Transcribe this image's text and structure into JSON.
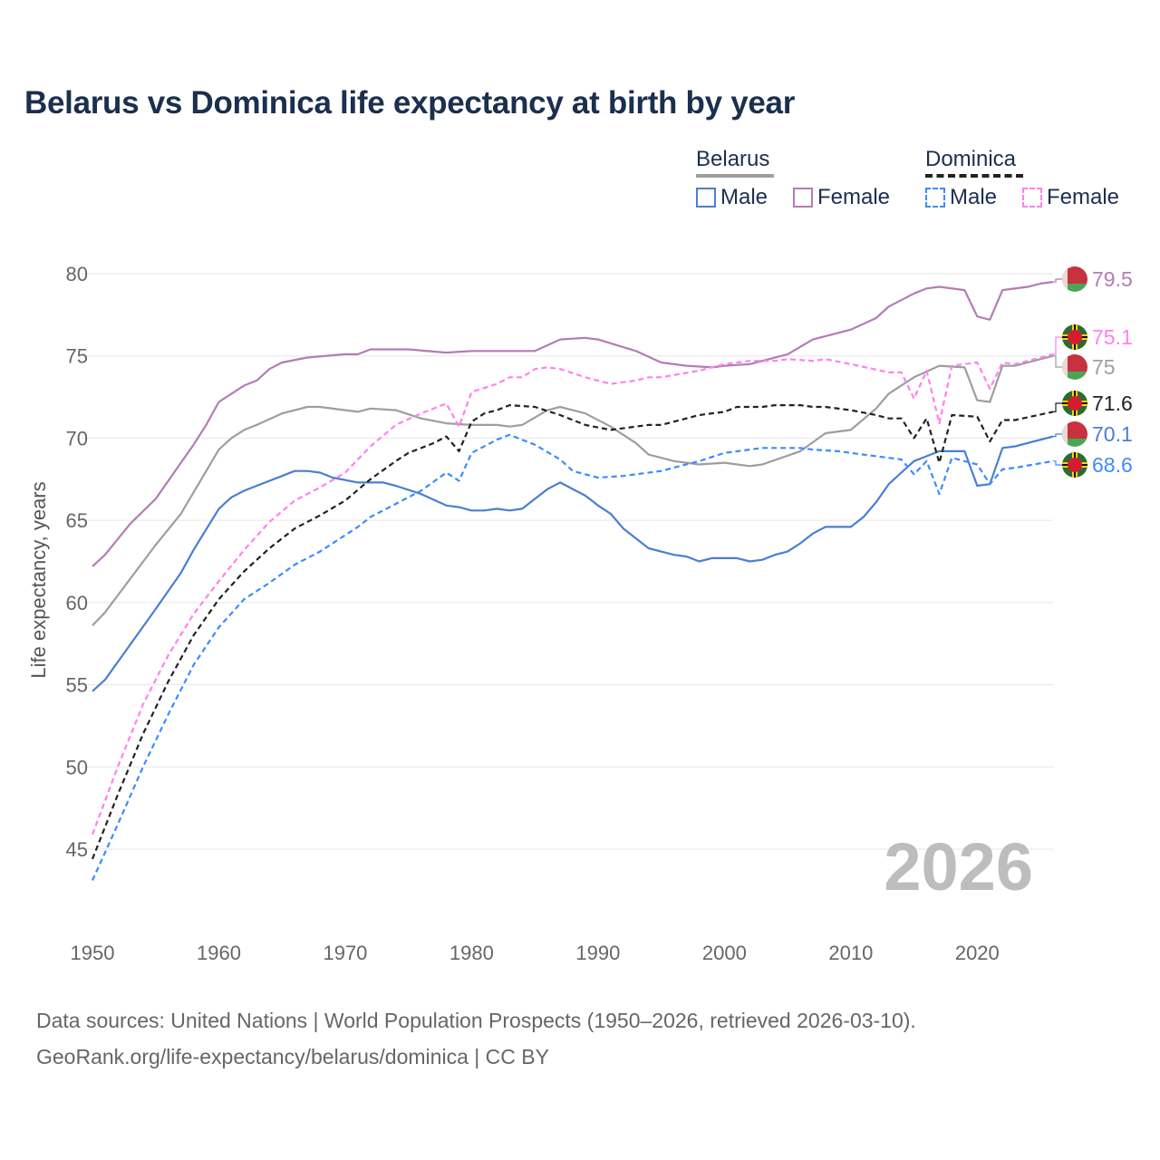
{
  "title": "Belarus vs Dominica life expectancy at birth by year",
  "legend": {
    "groups": [
      {
        "name": "Belarus",
        "items": [
          "Male",
          "Female"
        ]
      },
      {
        "name": "Dominica",
        "items": [
          "Male",
          "Female"
        ]
      }
    ]
  },
  "source": {
    "line1": "Data sources: United Nations | World Population Prospects (1950–2026, retrieved 2026-03-10).",
    "line2": "GeoRank.org/life-expectancy/belarus/dominica | CC BY"
  },
  "chart_data": {
    "type": "line",
    "title": "Belarus vs Dominica life expectancy at birth by year",
    "xlabel": "",
    "ylabel": "Life expectancy, years",
    "xlim": [
      1950,
      2026
    ],
    "ylim": [
      42,
      82
    ],
    "xticks": [
      1950,
      1960,
      1970,
      1980,
      1990,
      2000,
      2010,
      2020
    ],
    "yticks": [
      45,
      50,
      55,
      60,
      65,
      70,
      75,
      80
    ],
    "watermark": "2026",
    "grid": true,
    "legend_position": "top-right",
    "series": [
      {
        "name": "Belarus Female",
        "country": "Belarus",
        "color": "#b57bb5",
        "dashed": false,
        "end_label": "79.5",
        "flag": "belarus",
        "x": [
          1950,
          1951,
          1953,
          1955,
          1957,
          1958,
          1959,
          1960,
          1962,
          1963,
          1964,
          1965,
          1967,
          1970,
          1971,
          1972,
          1975,
          1978,
          1980,
          1985,
          1987,
          1989,
          1990,
          1993,
          1995,
          1997,
          1999,
          2000,
          2002,
          2005,
          2007,
          2009,
          2010,
          2012,
          2013,
          2015,
          2016,
          2017,
          2019,
          2020,
          2021,
          2022,
          2024,
          2025,
          2026
        ],
        "y": [
          62.2,
          62.9,
          64.8,
          66.3,
          68.5,
          69.6,
          70.8,
          72.2,
          73.2,
          73.5,
          74.2,
          74.6,
          74.9,
          75.1,
          75.1,
          75.4,
          75.4,
          75.2,
          75.3,
          75.3,
          76.0,
          76.1,
          76.0,
          75.3,
          74.6,
          74.4,
          74.3,
          74.4,
          74.5,
          75.1,
          76.0,
          76.4,
          76.6,
          77.3,
          78.0,
          78.8,
          79.1,
          79.2,
          79.0,
          77.4,
          77.2,
          79.0,
          79.2,
          79.4,
          79.5
        ]
      },
      {
        "name": "Belarus",
        "country": "Belarus",
        "color": "#9e9e9e",
        "dashed": false,
        "end_label": "75",
        "flag": "belarus",
        "x": [
          1950,
          1951,
          1955,
          1957,
          1958,
          1960,
          1961,
          1962,
          1963,
          1965,
          1967,
          1968,
          1970,
          1971,
          1972,
          1974,
          1976,
          1978,
          1980,
          1982,
          1983,
          1984,
          1986,
          1987,
          1989,
          1991,
          1993,
          1994,
          1996,
          1998,
          2000,
          2002,
          2003,
          2006,
          2008,
          2010,
          2012,
          2013,
          2015,
          2017,
          2019,
          2020,
          2021,
          2022,
          2023,
          2026
        ],
        "y": [
          58.6,
          59.4,
          63.5,
          65.4,
          66.7,
          69.3,
          70.0,
          70.5,
          70.8,
          71.5,
          71.9,
          71.9,
          71.7,
          71.6,
          71.8,
          71.7,
          71.2,
          70.9,
          70.8,
          70.8,
          70.7,
          70.8,
          71.7,
          71.9,
          71.5,
          70.7,
          69.7,
          69.0,
          68.6,
          68.4,
          68.5,
          68.3,
          68.4,
          69.2,
          70.3,
          70.5,
          71.8,
          72.7,
          73.7,
          74.4,
          74.3,
          72.3,
          72.2,
          74.4,
          74.4,
          75.0
        ]
      },
      {
        "name": "Belarus Male",
        "country": "Belarus",
        "color": "#4a7fd0",
        "dashed": false,
        "end_label": "70.1",
        "flag": "belarus",
        "x": [
          1950,
          1951,
          1955,
          1957,
          1958,
          1960,
          1961,
          1962,
          1963,
          1965,
          1966,
          1967,
          1968,
          1969,
          1971,
          1973,
          1974,
          1976,
          1978,
          1979,
          1980,
          1981,
          1982,
          1983,
          1984,
          1986,
          1987,
          1989,
          1990,
          1991,
          1992,
          1994,
          1996,
          1997,
          1998,
          1999,
          2001,
          2002,
          2003,
          2004,
          2005,
          2006,
          2007,
          2008,
          2010,
          2011,
          2012,
          2013,
          2014,
          2015,
          2016,
          2017,
          2019,
          2020,
          2021,
          2022,
          2023,
          2026
        ],
        "y": [
          54.6,
          55.3,
          59.6,
          61.8,
          63.2,
          65.7,
          66.4,
          66.8,
          67.1,
          67.7,
          68.0,
          68.0,
          67.9,
          67.6,
          67.3,
          67.3,
          67.1,
          66.6,
          65.9,
          65.8,
          65.6,
          65.6,
          65.7,
          65.6,
          65.7,
          66.9,
          67.3,
          66.5,
          65.9,
          65.4,
          64.5,
          63.3,
          62.9,
          62.8,
          62.5,
          62.7,
          62.7,
          62.5,
          62.6,
          62.9,
          63.1,
          63.6,
          64.2,
          64.6,
          64.6,
          65.2,
          66.1,
          67.2,
          67.9,
          68.6,
          68.9,
          69.2,
          69.2,
          67.1,
          67.2,
          69.4,
          69.5,
          70.1
        ]
      },
      {
        "name": "Dominica Female",
        "country": "Dominica",
        "color": "#ff80f0",
        "dashed": true,
        "end_label": "75.1",
        "flag": "dominica",
        "x": [
          1950,
          1952,
          1954,
          1956,
          1958,
          1960,
          1962,
          1964,
          1966,
          1968,
          1970,
          1972,
          1974,
          1976,
          1978,
          1979,
          1980,
          1982,
          1983,
          1984,
          1985,
          1986,
          1987,
          1989,
          1991,
          1993,
          1994,
          1995,
          1998,
          2000,
          2002,
          2004,
          2005,
          2007,
          2008,
          2010,
          2013,
          2014,
          2015,
          2016,
          2017,
          2018,
          2020,
          2021,
          2022,
          2023,
          2026
        ],
        "y": [
          45.9,
          50.0,
          53.8,
          56.8,
          59.3,
          61.3,
          63.2,
          64.9,
          66.2,
          67.0,
          67.9,
          69.5,
          70.8,
          71.5,
          72.1,
          70.7,
          72.8,
          73.3,
          73.7,
          73.7,
          74.2,
          74.3,
          74.2,
          73.7,
          73.3,
          73.5,
          73.7,
          73.7,
          74.1,
          74.5,
          74.7,
          74.7,
          74.8,
          74.7,
          74.8,
          74.5,
          74.0,
          74.0,
          72.4,
          74.1,
          70.9,
          74.4,
          74.6,
          73.0,
          74.6,
          74.5,
          75.1
        ]
      },
      {
        "name": "Dominica",
        "country": "Dominica",
        "color": "#222222",
        "dashed": true,
        "end_label": "71.6",
        "flag": "dominica",
        "x": [
          1950,
          1952,
          1954,
          1956,
          1958,
          1960,
          1962,
          1964,
          1966,
          1968,
          1970,
          1972,
          1974,
          1975,
          1977,
          1978,
          1979,
          1980,
          1981,
          1982,
          1983,
          1985,
          1987,
          1989,
          1991,
          1993,
          1994,
          1995,
          1998,
          2000,
          2001,
          2003,
          2004,
          2006,
          2007,
          2008,
          2010,
          2012,
          2013,
          2014,
          2015,
          2016,
          2017,
          2018,
          2020,
          2021,
          2022,
          2023,
          2026
        ],
        "y": [
          44.4,
          48.3,
          52.0,
          55.2,
          58.0,
          60.2,
          61.9,
          63.3,
          64.5,
          65.3,
          66.2,
          67.5,
          68.6,
          69.1,
          69.7,
          70.1,
          69.2,
          71.0,
          71.5,
          71.7,
          72.0,
          71.9,
          71.4,
          70.8,
          70.5,
          70.7,
          70.8,
          70.8,
          71.4,
          71.6,
          71.9,
          71.9,
          72.0,
          72.0,
          71.9,
          71.9,
          71.7,
          71.4,
          71.2,
          71.2,
          70.0,
          71.2,
          68.5,
          71.4,
          71.3,
          69.8,
          71.1,
          71.1,
          71.6
        ]
      },
      {
        "name": "Dominica Male",
        "country": "Dominica",
        "color": "#3d8bff",
        "dashed": true,
        "end_label": "68.6",
        "flag": "dominica",
        "x": [
          1950,
          1952,
          1954,
          1956,
          1958,
          1960,
          1962,
          1964,
          1966,
          1968,
          1970,
          1971,
          1972,
          1974,
          1976,
          1978,
          1979,
          1980,
          1982,
          1983,
          1985,
          1987,
          1988,
          1990,
          1992,
          1995,
          1998,
          2000,
          2002,
          2003,
          2006,
          2007,
          2009,
          2011,
          2014,
          2015,
          2016,
          2017,
          2018,
          2020,
          2021,
          2022,
          2023,
          2026
        ],
        "y": [
          43.1,
          46.5,
          50.0,
          53.2,
          56.2,
          58.5,
          60.2,
          61.2,
          62.3,
          63.1,
          64.1,
          64.6,
          65.2,
          66.0,
          66.8,
          67.9,
          67.4,
          69.1,
          69.9,
          70.2,
          69.6,
          68.7,
          68.0,
          67.6,
          67.7,
          68.0,
          68.6,
          69.1,
          69.3,
          69.4,
          69.4,
          69.3,
          69.2,
          69.0,
          68.7,
          67.8,
          68.6,
          66.6,
          68.8,
          68.4,
          67.2,
          68.1,
          68.2,
          68.6
        ]
      }
    ]
  }
}
